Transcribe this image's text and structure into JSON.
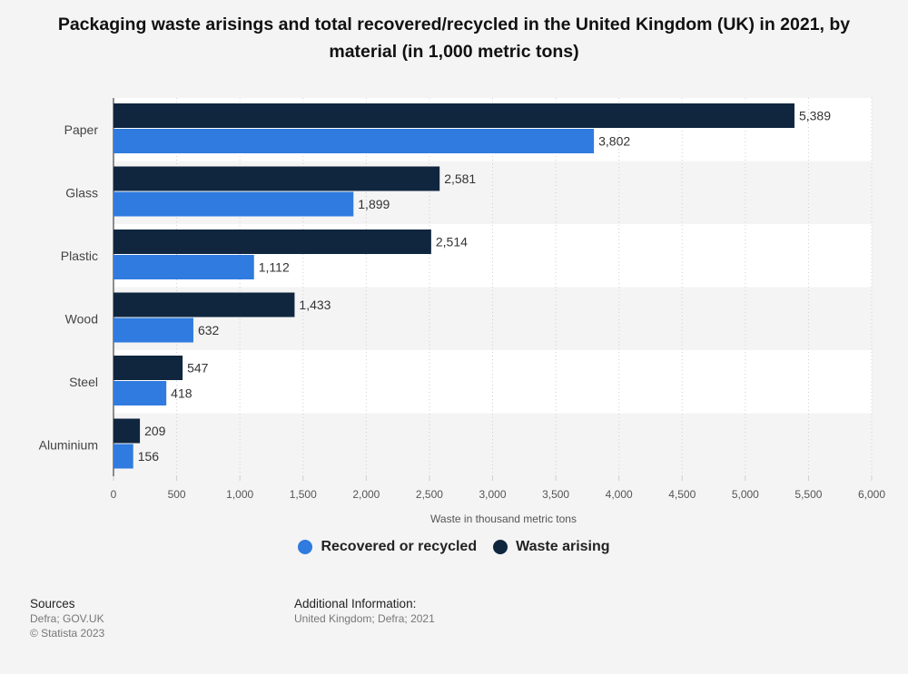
{
  "title": "Packaging waste arisings and total recovered/recycled in the United Kingdom (UK) in 2021, by material (in 1,000 metric tons)",
  "chart_data": {
    "type": "bar",
    "orientation": "horizontal",
    "categories": [
      "Paper",
      "Glass",
      "Plastic",
      "Wood",
      "Steel",
      "Aluminium"
    ],
    "series": [
      {
        "name": "Waste arising",
        "color": "#10263f",
        "values": [
          5389,
          2581,
          2514,
          1433,
          547,
          209
        ]
      },
      {
        "name": "Recovered or recycled",
        "color": "#2f7bdf",
        "values": [
          3802,
          1899,
          1112,
          632,
          418,
          156
        ]
      }
    ],
    "xlabel": "Waste in thousand metric tons",
    "xlim": [
      0,
      6000
    ],
    "xticks": [
      0,
      500,
      1000,
      1500,
      2000,
      2500,
      3000,
      3500,
      4000,
      4500,
      5000,
      5500,
      6000
    ],
    "xtick_labels": [
      "0",
      "500",
      "1,000",
      "1,500",
      "2,000",
      "2,500",
      "3,000",
      "3,500",
      "4,000",
      "4,500",
      "5,000",
      "5,500",
      "6,000"
    ],
    "value_labels": [
      [
        "5,389",
        "2,581",
        "2,514",
        "1,433",
        "547",
        "209"
      ],
      [
        "3,802",
        "1,899",
        "1,112",
        "632",
        "418",
        "156"
      ]
    ],
    "grid": true,
    "legend_position": "bottom"
  },
  "legend": {
    "items": [
      {
        "label": "Recovered or recycled",
        "color": "#2f7bdf"
      },
      {
        "label": "Waste arising",
        "color": "#10263f"
      }
    ]
  },
  "footer": {
    "sources_heading": "Sources",
    "sources_lines": [
      "Defra; GOV.UK",
      "© Statista 2023"
    ],
    "additional_heading": "Additional Information:",
    "additional_lines": [
      "United Kingdom; Defra; 2021"
    ]
  }
}
